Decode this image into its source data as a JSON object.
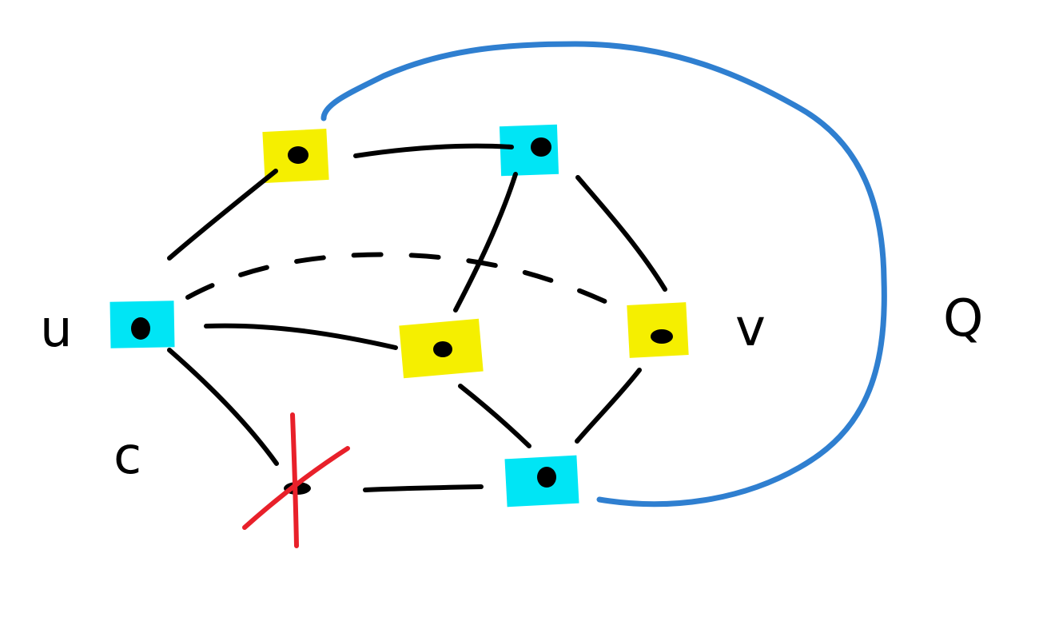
{
  "labels": {
    "u": "u",
    "v": "v",
    "c": "c",
    "q": "Q"
  },
  "colors": {
    "yellow": "#f5ef00",
    "cyan": "#00e5f5",
    "edge": "#000000",
    "curve": "#2f7fd0",
    "cross": "#e8202a"
  },
  "vertex_colors": {
    "top_left": "yellow",
    "top_right": "cyan",
    "u": "cyan",
    "center": "yellow",
    "v": "yellow",
    "bottom_right": "cyan",
    "bottom_left_crossed": "none"
  }
}
